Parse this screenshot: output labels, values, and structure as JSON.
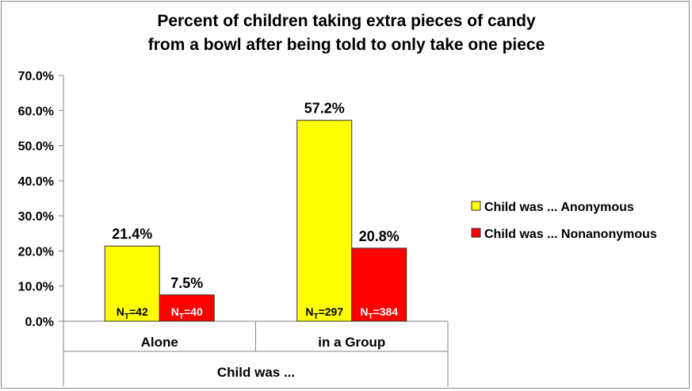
{
  "chart_data": {
    "type": "bar",
    "title_line1": "Percent of children taking extra pieces of candy",
    "title_line2": "from a bowl after being told to only take one piece",
    "xlabel": "Child was ...",
    "categories": [
      "Alone",
      "in a Group"
    ],
    "ylim": [
      0,
      70
    ],
    "yticks": [
      "0.0%",
      "10.0%",
      "20.0%",
      "30.0%",
      "40.0%",
      "50.0%",
      "60.0%",
      "70.0%"
    ],
    "legend_position": "right",
    "series": [
      {
        "name": "Child was ... Anonymous",
        "color": "#ffff00",
        "values": [
          21.4,
          57.2
        ],
        "value_labels": [
          "21.4%",
          "57.2%"
        ],
        "n_labels": [
          "42",
          "297"
        ]
      },
      {
        "name": "Child was ... Nonanonymous",
        "color": "#ff0000",
        "values": [
          7.5,
          20.8
        ],
        "value_labels": [
          "7.5%",
          "20.8%"
        ],
        "n_labels": [
          "40",
          "384"
        ]
      }
    ],
    "n_prefix": "N",
    "n_subscript": "T",
    "n_equals": "="
  }
}
